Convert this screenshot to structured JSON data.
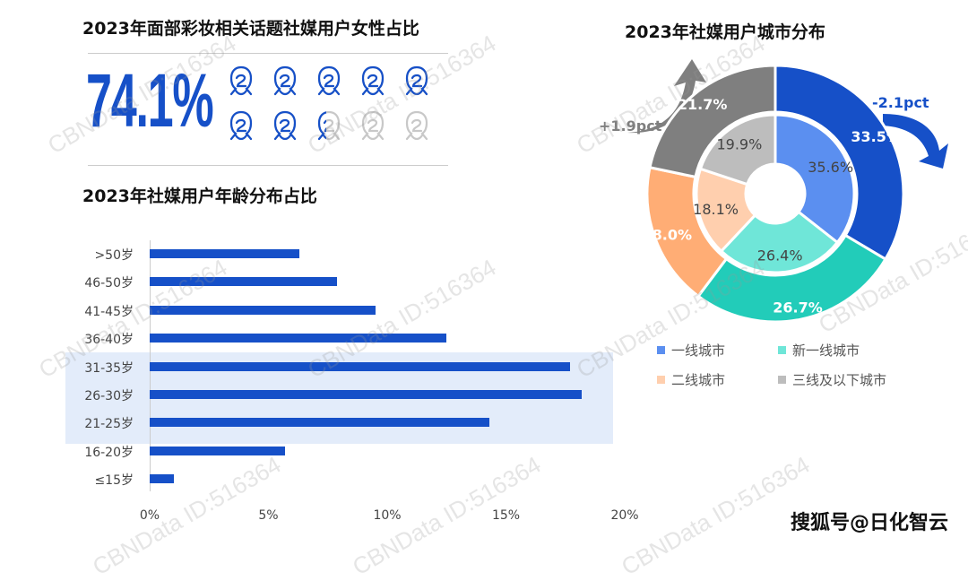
{
  "female_share": {
    "title": "2023年面部彩妆相关话题社媒用户女性占比",
    "value": "74.1%",
    "icons_total": 10,
    "icons_filled": 7.41,
    "icon_color": "#1650c8",
    "icon_empty_color": "#c8c8c8"
  },
  "age_chart": {
    "title": "2023年社媒用户年龄分布占比"
  },
  "city_chart": {
    "title": "2023年社媒用户城市分布",
    "change_up": "+1.9pct",
    "change_down": "-2.1pct",
    "legend": [
      {
        "label": "一线城市",
        "color": "#5b8ff0"
      },
      {
        "label": "新一线城市",
        "color": "#6fe6d8"
      },
      {
        "label": "二线城市",
        "color": "#ffcfae"
      },
      {
        "label": "三线及以下城市",
        "color": "#bdbdbd"
      }
    ]
  },
  "watermark": "CBNData ID:516364",
  "footer": "搜狐号@日化智云",
  "chart_data": [
    {
      "type": "bar",
      "orientation": "horizontal",
      "title": "2023年社媒用户年龄分布占比",
      "categories": [
        ">50岁",
        "46-50岁",
        "41-45岁",
        "36-40岁",
        "31-35岁",
        "26-30岁",
        "21-25岁",
        "16-20岁",
        "≤15岁"
      ],
      "values": [
        6.3,
        7.9,
        9.5,
        12.5,
        17.7,
        18.2,
        14.3,
        5.7,
        1.0
      ],
      "unit": "%",
      "xlim": [
        0,
        20
      ],
      "xticks": [
        "0%",
        "5%",
        "10%",
        "15%",
        "20%"
      ],
      "highlight_categories": [
        "31-35岁",
        "26-30岁",
        "21-25岁"
      ],
      "bar_color": "#1650c8",
      "highlight_color": "#e3ecfa",
      "grid": false
    },
    {
      "type": "pie",
      "subtype": "nested-donut",
      "title": "2023年社媒用户城市分布",
      "categories": [
        "一线城市",
        "新一线城市",
        "二线城市",
        "三线及以下城市"
      ],
      "series": [
        {
          "name": "inner",
          "values": [
            35.6,
            26.4,
            18.1,
            19.9
          ],
          "labels": [
            "35.6%",
            "26.4%",
            "18.1%",
            "19.9%"
          ],
          "colors": [
            "#5b8ff0",
            "#6fe6d8",
            "#ffcfae",
            "#bdbdbd"
          ]
        },
        {
          "name": "outer",
          "values": [
            33.5,
            26.7,
            18.0,
            21.7
          ],
          "labels": [
            "33.5%",
            "26.7%",
            "18.0%",
            "21.7%"
          ],
          "colors": [
            "#1650c8",
            "#22ccb9",
            "#ffad75",
            "#7f7f7f"
          ]
        }
      ],
      "annotations": [
        {
          "text": "+1.9pct",
          "target": "三线及以下城市",
          "direction": "up"
        },
        {
          "text": "-2.1pct",
          "target": "一线城市",
          "direction": "down"
        }
      ],
      "legend_position": "bottom"
    }
  ]
}
